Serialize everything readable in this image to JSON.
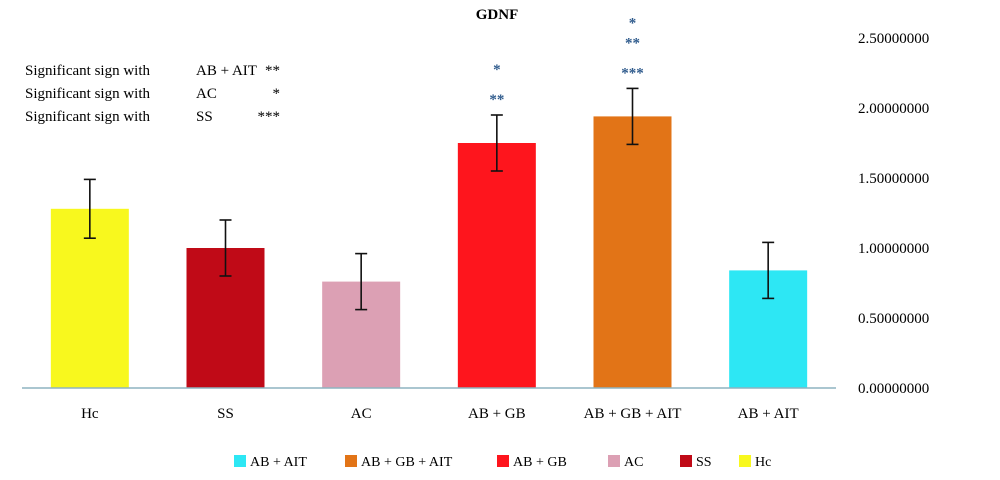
{
  "chart_data": {
    "type": "bar",
    "title": "GDNF",
    "xlabel": "",
    "ylabel": "",
    "ylim": [
      0,
      2.5
    ],
    "yticks": [
      "0.00000000",
      "0.50000000",
      "1.00000000",
      "1.50000000",
      "2.00000000",
      "2.50000000"
    ],
    "y_axis_side": "right",
    "grid": false,
    "categories": [
      "Hc",
      "SS",
      "AC",
      "AB + GB",
      "AB + GB + AIT",
      "AB +  AIT"
    ],
    "values": [
      1.28,
      1.0,
      0.76,
      1.75,
      1.94,
      0.84
    ],
    "errors": [
      0.21,
      0.2,
      0.2,
      0.2,
      0.2,
      0.2
    ],
    "colors": [
      "#f8f81e",
      "#c00a17",
      "#dca0b4",
      "#fe151d",
      "#e27417",
      "#2de7f4"
    ],
    "significance": [
      {
        "top": "",
        "bottom": ""
      },
      {
        "top": "",
        "bottom": ""
      },
      {
        "top": "",
        "bottom": ""
      },
      {
        "top": "*",
        "bottom": "**"
      },
      {
        "top": "*\n**",
        "bottom": "***"
      },
      {
        "top": "",
        "bottom": ""
      }
    ],
    "annotations": [
      {
        "label": "Significant sign with",
        "group": "AB + AIT",
        "mark": "**"
      },
      {
        "label": "Significant sign with",
        "group": "AC",
        "mark": "*"
      },
      {
        "label": "Significant sign with",
        "group": "SS",
        "mark": "***"
      }
    ],
    "legend": {
      "placement": "bottom",
      "entries": [
        {
          "name": "AB + AIT",
          "color": "#2de7f4"
        },
        {
          "name": "AB + GB + AIT",
          "color": "#e27417"
        },
        {
          "name": "AB + GB",
          "color": "#fe151d"
        },
        {
          "name": "AC",
          "color": "#dca0b4"
        },
        {
          "name": "SS",
          "color": "#c00a17"
        },
        {
          "name": "Hc",
          "color": "#f8f81e"
        }
      ]
    },
    "axis_color": "#8eb4c0",
    "star_color": "#2e5a8c"
  }
}
